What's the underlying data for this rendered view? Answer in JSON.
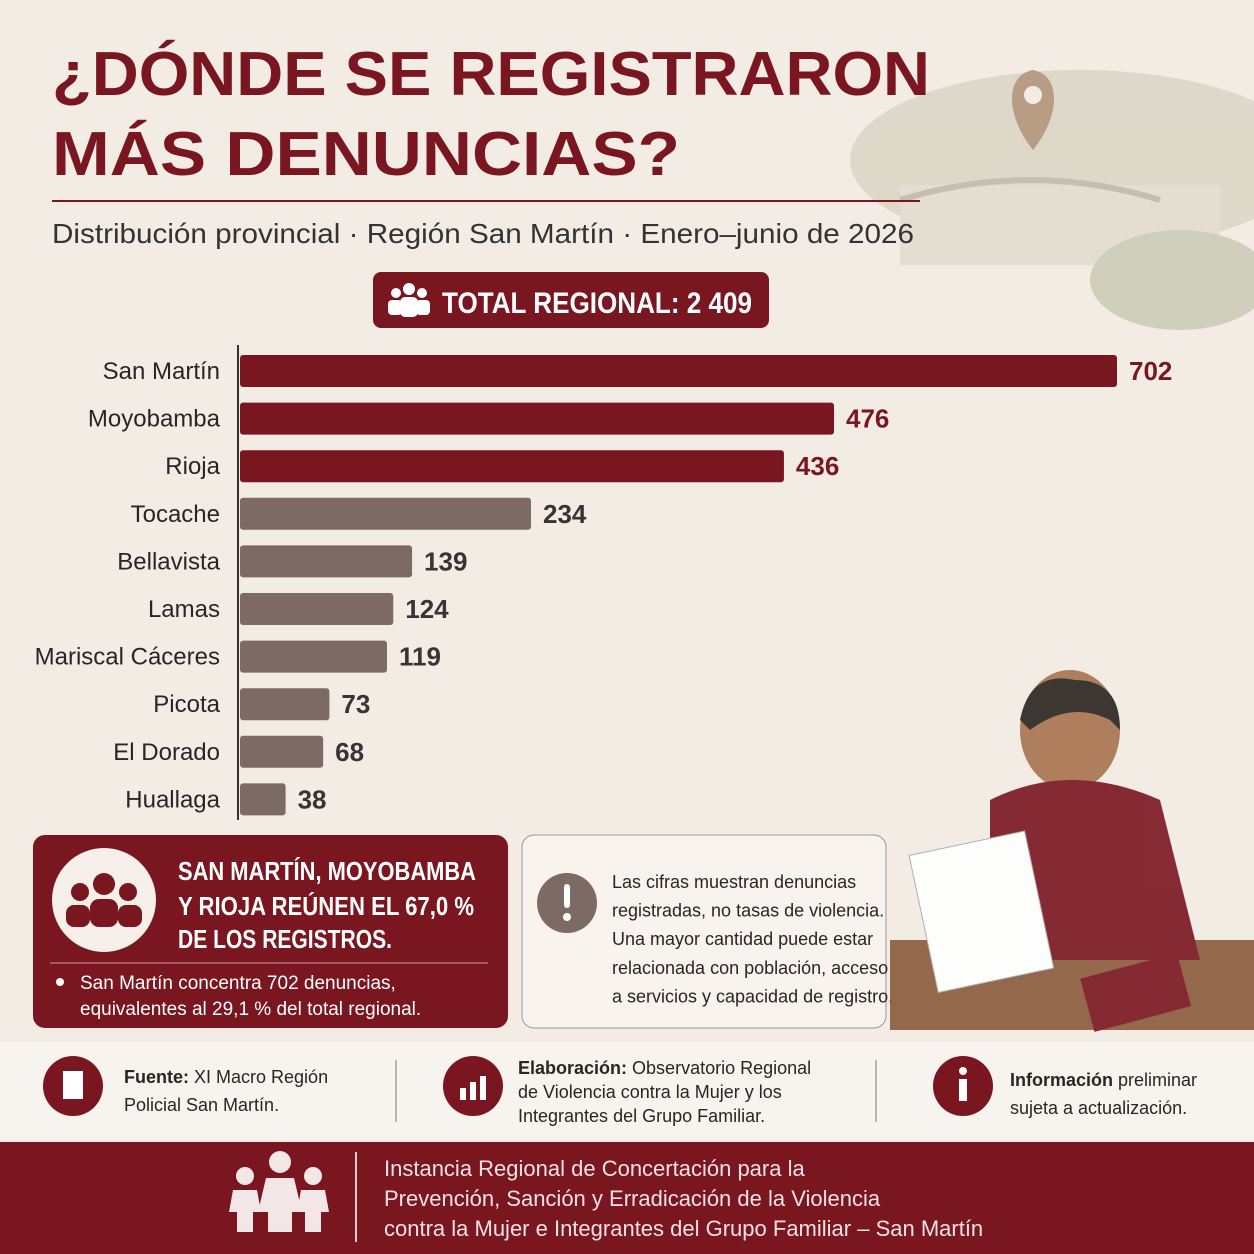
{
  "chart_data": {
    "type": "bar",
    "title_lines": [
      "¿DÓNDE SE REGISTRARON",
      "MÁS DENUNCIAS?"
    ],
    "subtitle": "Distribución provincial · Región San Martín · Enero–junio de 2026",
    "badge": "TOTAL REGIONAL: 2 409",
    "categories": [
      "San Martín",
      "Moyobamba",
      "Rioja",
      "Tocache",
      "Bellavista",
      "Lamas",
      "Mariscal Cáceres",
      "Picota",
      "El Dorado",
      "Huallaga"
    ],
    "values": [
      702,
      476,
      436,
      234,
      139,
      124,
      119,
      73,
      68,
      38
    ],
    "colors": [
      "#7a1620",
      "#7a1620",
      "#7a1620",
      "#7d6a64",
      "#7d6a64",
      "#7d6a64",
      "#7d6a64",
      "#7d6a64",
      "#7d6a64",
      "#7d6a64"
    ]
  },
  "callout": {
    "lines": [
      "SAN MARTÍN, MOYOBAMBA",
      "Y RIOJA REÚNEN EL 67,0 %",
      "DE LOS REGISTROS."
    ],
    "bullet": [
      "San Martín concentra 702 denuncias,",
      "equivalentes al 29,1 % del total regional."
    ]
  },
  "note": {
    "lines": [
      "Las cifras muestran denuncias",
      "registradas, no tasas de violencia.",
      "Una mayor cantidad puede estar",
      "relacionada con población, acceso",
      "a servicios y capacidad de registro."
    ]
  },
  "sources": {
    "fuente_label": "Fuente:",
    "fuente": [
      "XI Macro Región",
      "Policial San Martín."
    ],
    "elab_label": "Elaboración:",
    "elab": [
      "Observatorio Regional",
      "de Violencia contra la Mujer y los",
      "Integrantes del Grupo Familiar."
    ],
    "info_label": "Información",
    "info": [
      "preliminar",
      "sujeta a actualización."
    ]
  },
  "footer": {
    "lines": [
      "Instancia Regional de Concertación para la",
      "Prevención, Sanción y Erradicación de la Violencia",
      "contra la Mujer e Integrantes del Grupo Familiar – San Martín"
    ]
  }
}
